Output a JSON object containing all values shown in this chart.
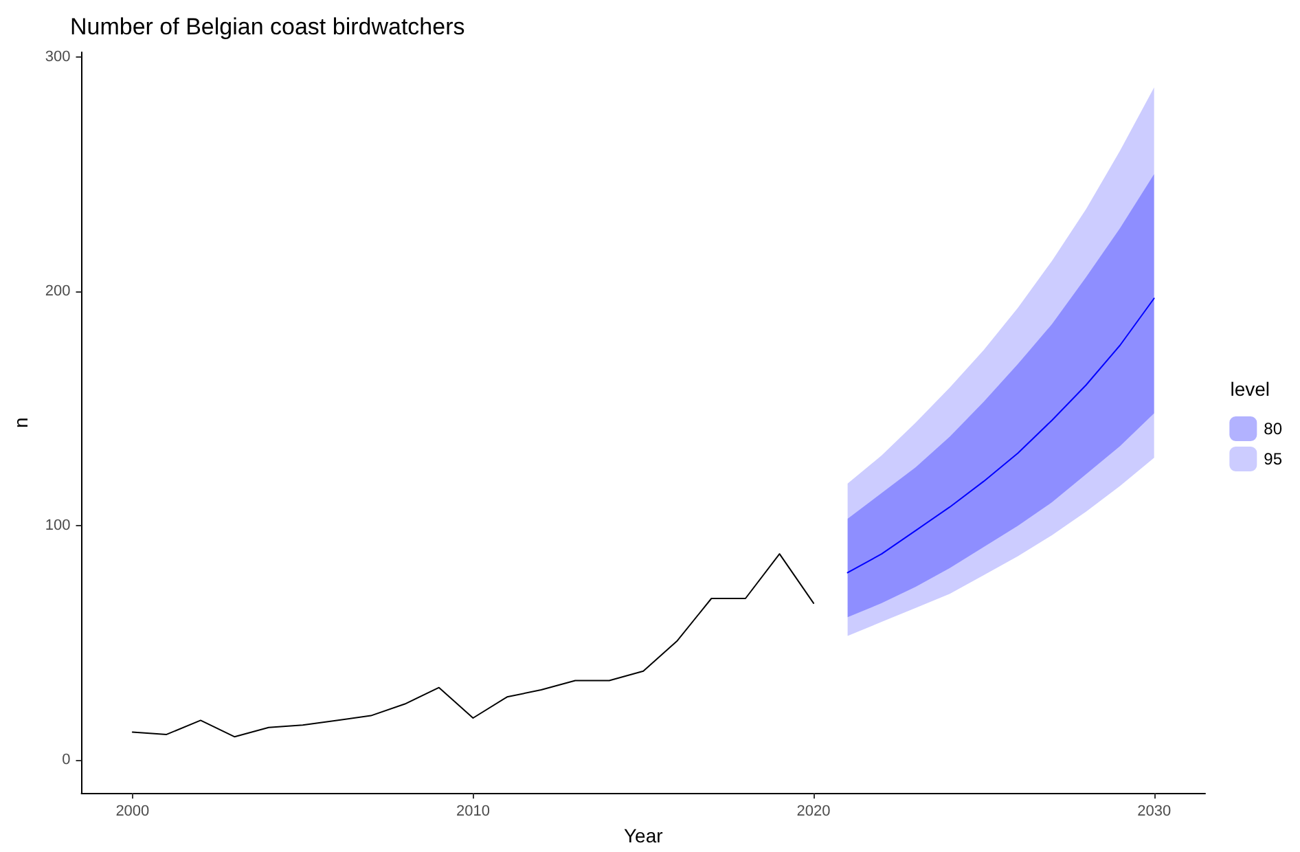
{
  "chart_data": {
    "type": "line",
    "title": "Number of Belgian coast birdwatchers",
    "xlabel": "Year",
    "ylabel": "n",
    "legend_title": "level",
    "legend": "right",
    "grid": false,
    "marker": "none",
    "line_style": "solid",
    "xlim": [
      1998.5,
      2031.5
    ],
    "xticks": [
      2000,
      2010,
      2020,
      2030
    ],
    "ylim": [
      -14,
      302
    ],
    "yticks": [
      0,
      100,
      200,
      300
    ],
    "series": [
      {
        "x": [
          2000,
          2001,
          2002,
          2003,
          2004,
          2005,
          2006,
          2007,
          2008,
          2009,
          2010,
          2011,
          2012,
          2013,
          2014,
          2015,
          2016,
          2017,
          2018,
          2019,
          2020
        ],
        "values": [
          12,
          11,
          17,
          10,
          14,
          15,
          17,
          19,
          24,
          31,
          18,
          27,
          30,
          34,
          34,
          38,
          51,
          69,
          69,
          88,
          67
        ],
        "color": "#000000"
      },
      {
        "name": "80",
        "x": [
          2021,
          2022,
          2023,
          2024,
          2025,
          2026,
          2027,
          2028,
          2029,
          2030
        ],
        "values": [
          80,
          88,
          98,
          108,
          119,
          131,
          145,
          160,
          177,
          197
        ],
        "lower": [
          61,
          67,
          74,
          82,
          91,
          100,
          110,
          122,
          134,
          148
        ],
        "upper": [
          103,
          114,
          125,
          138,
          153,
          169,
          186,
          206,
          227,
          250
        ],
        "color": "#0000ff"
      },
      {
        "name": "95",
        "x": [
          2021,
          2022,
          2023,
          2024,
          2025,
          2026,
          2027,
          2028,
          2029,
          2030
        ],
        "values": [
          null,
          null,
          null,
          null,
          null,
          null,
          null,
          null,
          null,
          null
        ],
        "lower": [
          53,
          59,
          65,
          71,
          79,
          87,
          96,
          106,
          117,
          129
        ],
        "upper": [
          118,
          130,
          144,
          159,
          175,
          193,
          213,
          235,
          260,
          287
        ],
        "color": "#ccccff"
      }
    ]
  }
}
